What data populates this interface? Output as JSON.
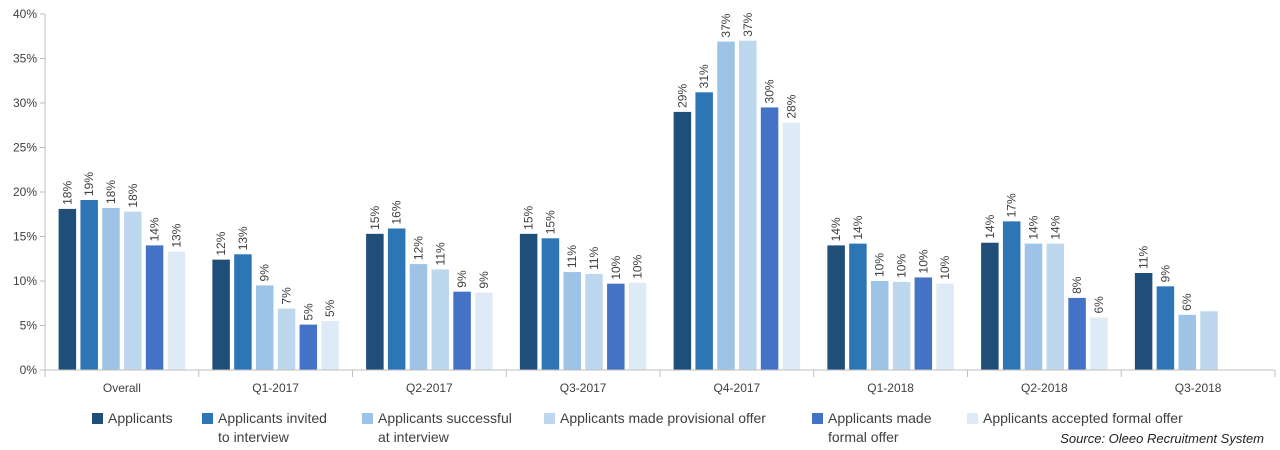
{
  "chart_data": {
    "type": "bar",
    "categories": [
      "Overall",
      "Q1-2017",
      "Q2-2017",
      "Q3-2017",
      "Q4-2017",
      "Q1-2018",
      "Q2-2018",
      "Q3-2018"
    ],
    "series": [
      {
        "name": "Applicants",
        "color": "#1f4e79",
        "values": [
          18.1,
          12.4,
          15.3,
          15.3,
          29.0,
          14.0,
          14.3,
          10.9
        ]
      },
      {
        "name": "Applicants invited\nto interview",
        "color": "#2e75b6",
        "values": [
          19.1,
          13.0,
          15.9,
          14.8,
          31.2,
          14.2,
          16.7,
          9.4
        ]
      },
      {
        "name": "Applicants successful\nat interview",
        "color": "#9dc3e6",
        "values": [
          18.2,
          9.5,
          11.9,
          11.0,
          36.9,
          10.0,
          14.2,
          6.2
        ]
      },
      {
        "name": "Applicants made provisional offer",
        "color": "#bdd7ee",
        "values": [
          17.8,
          6.9,
          11.3,
          10.8,
          37.0,
          9.9,
          14.2,
          6.6
        ]
      },
      {
        "name": "Applicants made\nformal offer",
        "color": "#4472c4",
        "values": [
          14.0,
          5.1,
          8.8,
          9.7,
          29.5,
          10.4,
          8.1,
          null
        ]
      },
      {
        "name": "Applicants accepted formal offer",
        "color": "#deebf7",
        "values": [
          13.3,
          5.5,
          8.7,
          9.8,
          27.8,
          9.7,
          5.9,
          null
        ]
      }
    ],
    "data_labels": [
      [
        "18%",
        "12%",
        "15%",
        "15%",
        "29%",
        "14%",
        "14%",
        "11%"
      ],
      [
        "19%",
        "13%",
        "16%",
        "15%",
        "31%",
        "14%",
        "17%",
        "9%"
      ],
      [
        "18%",
        "9%",
        "12%",
        "11%",
        "37%",
        "10%",
        "14%",
        "6%"
      ],
      [
        "18%",
        "7%",
        "11%",
        "11%",
        "37%",
        "10%",
        "14%",
        ""
      ],
      [
        "14%",
        "5%",
        "9%",
        "10%",
        "30%",
        "10%",
        "8%",
        ""
      ],
      [
        "13%",
        "5%",
        "9%",
        "10%",
        "28%",
        "10%",
        "6%",
        ""
      ]
    ],
    "ylim": [
      0,
      40
    ],
    "yticks": [
      "0%",
      "5%",
      "10%",
      "15%",
      "20%",
      "25%",
      "30%",
      "35%",
      "40%"
    ],
    "xlabel": "",
    "ylabel": "",
    "title": "",
    "grid": false,
    "legend_position": "bottom"
  },
  "source": "Source: Oleeo Recruitment System"
}
